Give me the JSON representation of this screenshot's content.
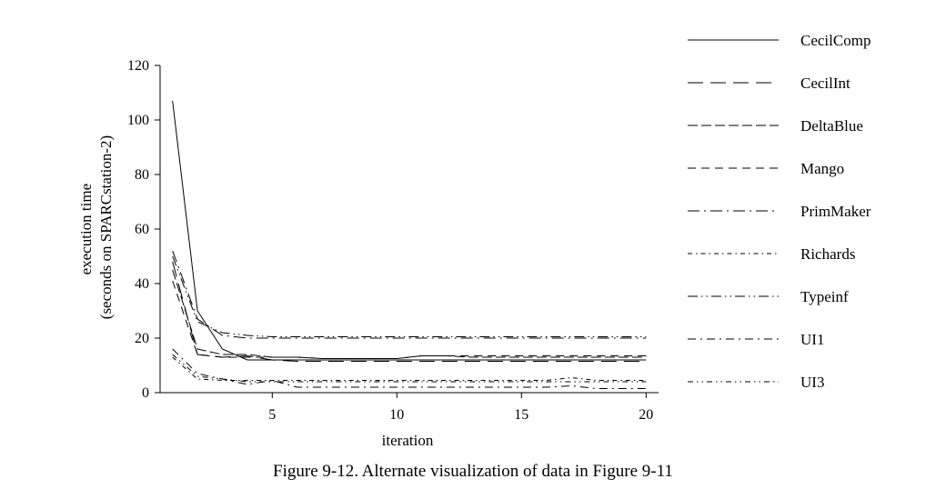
{
  "caption": "Figure 9-12.  Alternate visualization of data in Figure 9-11",
  "chart_data": {
    "type": "line",
    "xlabel": "iteration",
    "ylabel_lines": [
      "execution time",
      "(seconds on SPARCstation-2)"
    ],
    "xlim": [
      0.5,
      20.5
    ],
    "ylim": [
      0,
      120
    ],
    "xticks": [
      5,
      10,
      15,
      20
    ],
    "yticks": [
      0,
      20,
      40,
      60,
      80,
      100,
      120
    ],
    "grid": false,
    "legend_position": "right",
    "x": [
      1,
      2,
      3,
      4,
      5,
      6,
      7,
      8,
      9,
      10,
      11,
      12,
      13,
      14,
      15,
      16,
      17,
      18,
      19,
      20
    ],
    "series": [
      {
        "name": "CecilComp",
        "dash": "solid",
        "values": [
          107,
          30,
          16,
          12,
          12,
          12,
          12,
          12,
          12,
          12,
          12,
          12,
          12,
          12,
          12,
          12,
          12,
          12,
          12,
          12
        ]
      },
      {
        "name": "CecilInt",
        "dash": "long-dash",
        "values": [
          48,
          14,
          13,
          13.5,
          12,
          11.5,
          11.5,
          11.5,
          11.5,
          11.5,
          11.5,
          11.5,
          11.5,
          11.5,
          11.5,
          11.5,
          11.5,
          11.5,
          11.5,
          11.5
        ]
      },
      {
        "name": "DeltaBlue",
        "dash": "dash",
        "values": [
          45,
          16,
          14,
          14,
          13,
          13,
          12.5,
          12.5,
          12.5,
          12.5,
          13.5,
          13.5,
          13,
          13,
          13,
          13,
          13,
          13,
          13,
          13
        ]
      },
      {
        "name": "Mango",
        "dash": "short-dash",
        "values": [
          41,
          14,
          13,
          13,
          13,
          13,
          12.5,
          12.5,
          12.5,
          12.5,
          13.5,
          13.5,
          13.5,
          13.5,
          13.5,
          13.5,
          13.5,
          13.5,
          13.5,
          13.5
        ]
      },
      {
        "name": "PrimMaker",
        "dash": "dash-dot",
        "values": [
          52,
          27,
          21,
          20,
          20,
          20,
          20,
          20,
          20,
          20,
          20,
          20,
          20,
          20,
          20,
          20,
          20,
          20,
          20,
          20
        ]
      },
      {
        "name": "Richards",
        "dash": "dash-dot-fine",
        "values": [
          13,
          5,
          4.5,
          4.5,
          4.5,
          4.5,
          4.5,
          4.5,
          4.5,
          4.5,
          4.5,
          4.5,
          4.5,
          4.5,
          4.5,
          4.5,
          5.5,
          4.5,
          4.5,
          4.5
        ]
      },
      {
        "name": "Typeinf",
        "dash": "dash-dot-dot",
        "values": [
          50,
          26,
          22,
          21,
          20.5,
          20.5,
          20.5,
          20.5,
          20.5,
          20.5,
          20.5,
          20.5,
          20.5,
          20.5,
          20.5,
          20.5,
          20.5,
          20.5,
          20.5,
          20.5
        ]
      },
      {
        "name": "UI1",
        "dash": "dash-dot-long",
        "values": [
          16,
          7,
          5,
          3,
          4.5,
          2,
          2,
          2,
          2,
          2,
          2,
          2,
          2,
          2,
          2,
          2,
          2.5,
          1.5,
          1.5,
          1.5
        ]
      },
      {
        "name": "UI3",
        "dash": "dash-dot-dot-fine",
        "values": [
          14,
          6,
          5,
          4,
          4,
          4,
          4,
          4,
          4,
          4,
          4,
          4,
          4,
          4,
          4,
          4,
          4,
          4,
          4,
          4
        ]
      }
    ]
  }
}
